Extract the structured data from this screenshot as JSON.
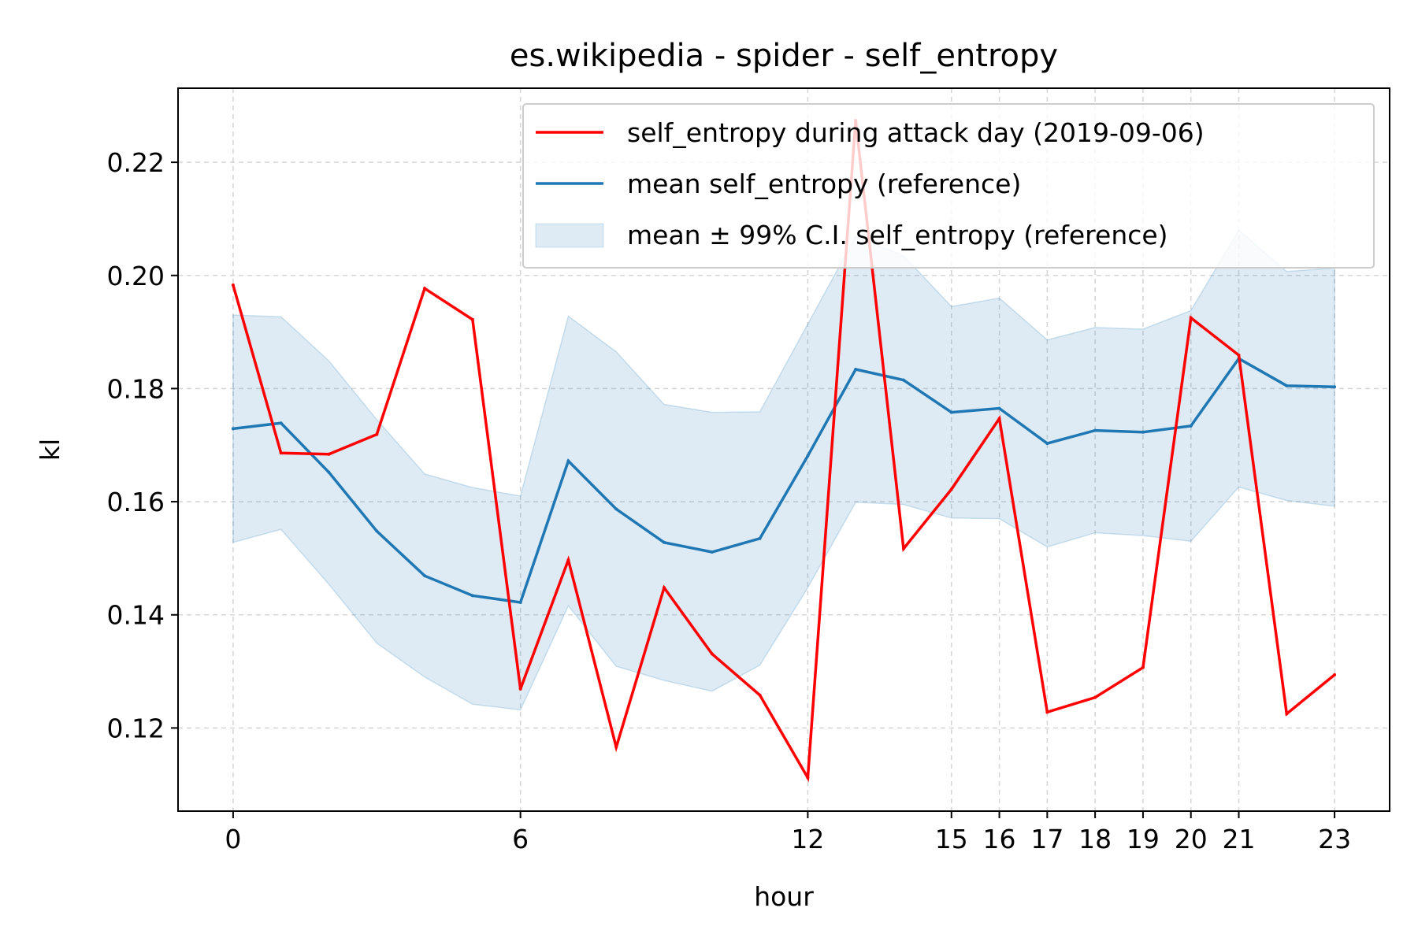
{
  "chart_data": {
    "type": "line",
    "title": "es.wikipedia - spider - self_entropy",
    "xlabel": "hour",
    "ylabel": "kl",
    "xlim": [
      -1.15,
      24.15
    ],
    "ylim": [
      0.1053,
      0.2331
    ],
    "x": [
      0,
      1,
      2,
      3,
      4,
      5,
      6,
      7,
      8,
      9,
      10,
      11,
      12,
      13,
      14,
      15,
      16,
      17,
      18,
      19,
      20,
      21,
      22,
      23
    ],
    "x_ticks": [
      0,
      6,
      12,
      15,
      16,
      17,
      18,
      19,
      20,
      21,
      23
    ],
    "y_ticks": [
      0.12,
      0.14,
      0.16,
      0.18,
      0.2,
      0.22
    ],
    "y_tick_labels": [
      "0.12",
      "0.14",
      "0.16",
      "0.18",
      "0.20",
      "0.22"
    ],
    "grid": true,
    "legend_position": "top-right",
    "series": [
      {
        "name": "self_entropy during attack day (2019-09-06)",
        "color": "#ff0000",
        "values": [
          0.1983,
          0.1686,
          0.1684,
          0.1719,
          0.1977,
          0.1922,
          0.1269,
          0.1497,
          0.1166,
          0.1448,
          0.1331,
          0.1258,
          0.1112,
          0.2274,
          0.1517,
          0.1622,
          0.1747,
          0.1228,
          0.1254,
          0.1307,
          0.1925,
          0.1859,
          0.1225,
          0.1294
        ]
      },
      {
        "name": "mean self_entropy (reference)",
        "color": "#1f77b4",
        "values": [
          0.1729,
          0.1739,
          0.1652,
          0.1548,
          0.1469,
          0.1434,
          0.1422,
          0.1672,
          0.1587,
          0.1528,
          0.1511,
          0.1535,
          0.1681,
          0.1834,
          0.1815,
          0.1758,
          0.1765,
          0.1703,
          0.1726,
          0.1723,
          0.1734,
          0.1853,
          0.1805,
          0.1803
        ]
      }
    ],
    "band": {
      "name": "mean ± 99% C.I. self_entropy (reference)",
      "color": "#1f77b4",
      "lower": [
        0.1528,
        0.1551,
        0.1454,
        0.135,
        0.129,
        0.1242,
        0.1232,
        0.1416,
        0.1309,
        0.1284,
        0.1265,
        0.1311,
        0.1448,
        0.1599,
        0.1595,
        0.1571,
        0.157,
        0.152,
        0.1545,
        0.154,
        0.153,
        0.1626,
        0.1602,
        0.1592
      ],
      "upper": [
        0.193,
        0.1927,
        0.1849,
        0.1745,
        0.1649,
        0.1625,
        0.161,
        0.1928,
        0.1865,
        0.1772,
        0.1758,
        0.1759,
        0.1914,
        0.2069,
        0.2035,
        0.1945,
        0.196,
        0.1886,
        0.1908,
        0.1905,
        0.1938,
        0.208,
        0.2007,
        0.2013
      ]
    }
  }
}
